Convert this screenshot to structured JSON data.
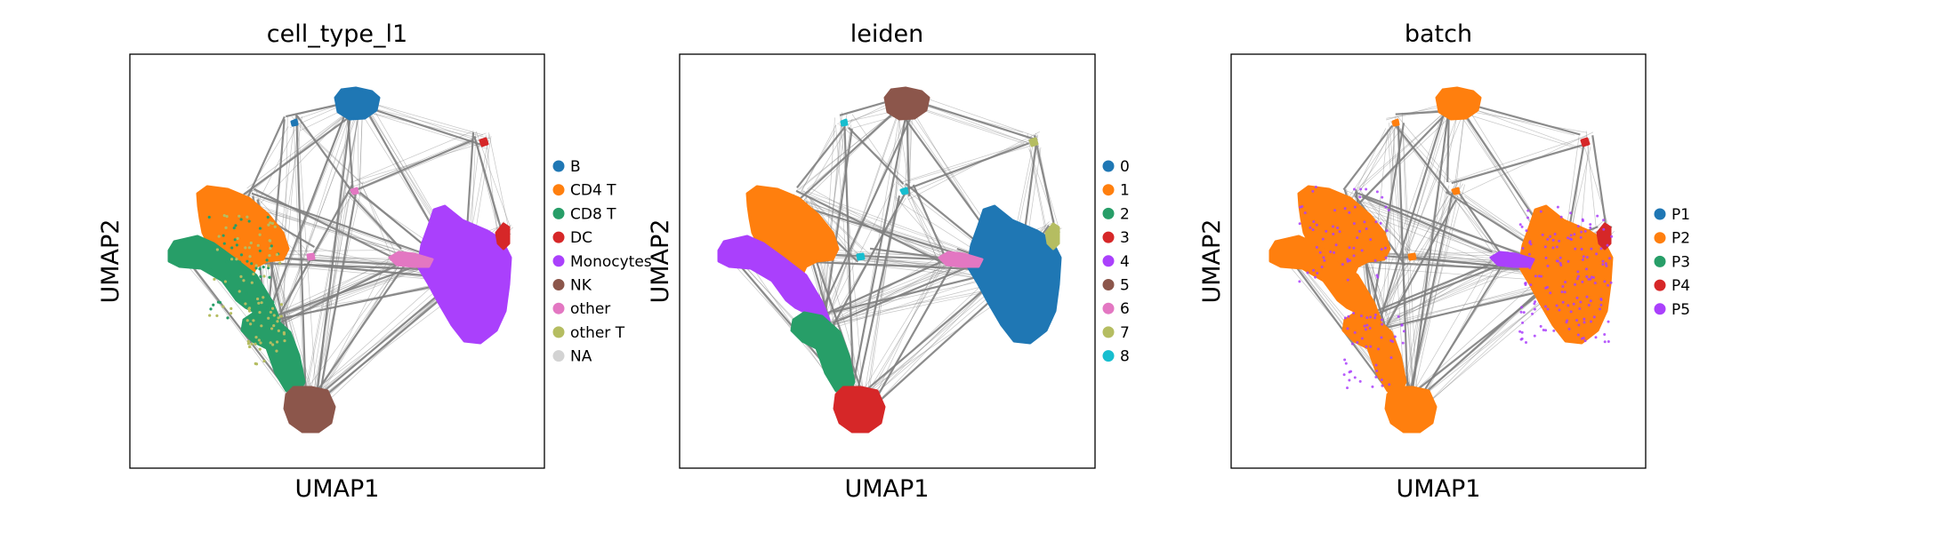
{
  "chart_data": [
    {
      "type": "scatter",
      "title": "cell_type_l1",
      "xlabel": "UMAP1",
      "ylabel": "UMAP2",
      "legend_position": "right",
      "grid": false,
      "legend": [
        {
          "label": "B",
          "color": "#1f77b4"
        },
        {
          "label": "CD4 T",
          "color": "#ff7f0e"
        },
        {
          "label": "CD8 T",
          "color": "#279e68"
        },
        {
          "label": "DC",
          "color": "#d62728"
        },
        {
          "label": "Monocytes",
          "color": "#aa40fc"
        },
        {
          "label": "NK",
          "color": "#8c564b"
        },
        {
          "label": "other",
          "color": "#e377c2"
        },
        {
          "label": "other T",
          "color": "#b5bd61"
        },
        {
          "label": "NA",
          "color": "#d3d3d3"
        }
      ]
    },
    {
      "type": "scatter",
      "title": "leiden",
      "xlabel": "UMAP1",
      "ylabel": "UMAP2",
      "legend_position": "right",
      "grid": false,
      "legend": [
        {
          "label": "0",
          "color": "#1f77b4"
        },
        {
          "label": "1",
          "color": "#ff7f0e"
        },
        {
          "label": "2",
          "color": "#279e68"
        },
        {
          "label": "3",
          "color": "#d62728"
        },
        {
          "label": "4",
          "color": "#aa40fc"
        },
        {
          "label": "5",
          "color": "#8c564b"
        },
        {
          "label": "6",
          "color": "#e377c2"
        },
        {
          "label": "7",
          "color": "#b5bd61"
        },
        {
          "label": "8",
          "color": "#17becf"
        }
      ]
    },
    {
      "type": "scatter",
      "title": "batch",
      "xlabel": "UMAP1",
      "ylabel": "UMAP2",
      "legend_position": "right",
      "grid": false,
      "legend": [
        {
          "label": "P1",
          "color": "#1f77b4"
        },
        {
          "label": "P2",
          "color": "#ff7f0e"
        },
        {
          "label": "P3",
          "color": "#279e68"
        },
        {
          "label": "P4",
          "color": "#d62728"
        },
        {
          "label": "P5",
          "color": "#aa40fc"
        }
      ]
    }
  ],
  "edge_color": "#808080"
}
